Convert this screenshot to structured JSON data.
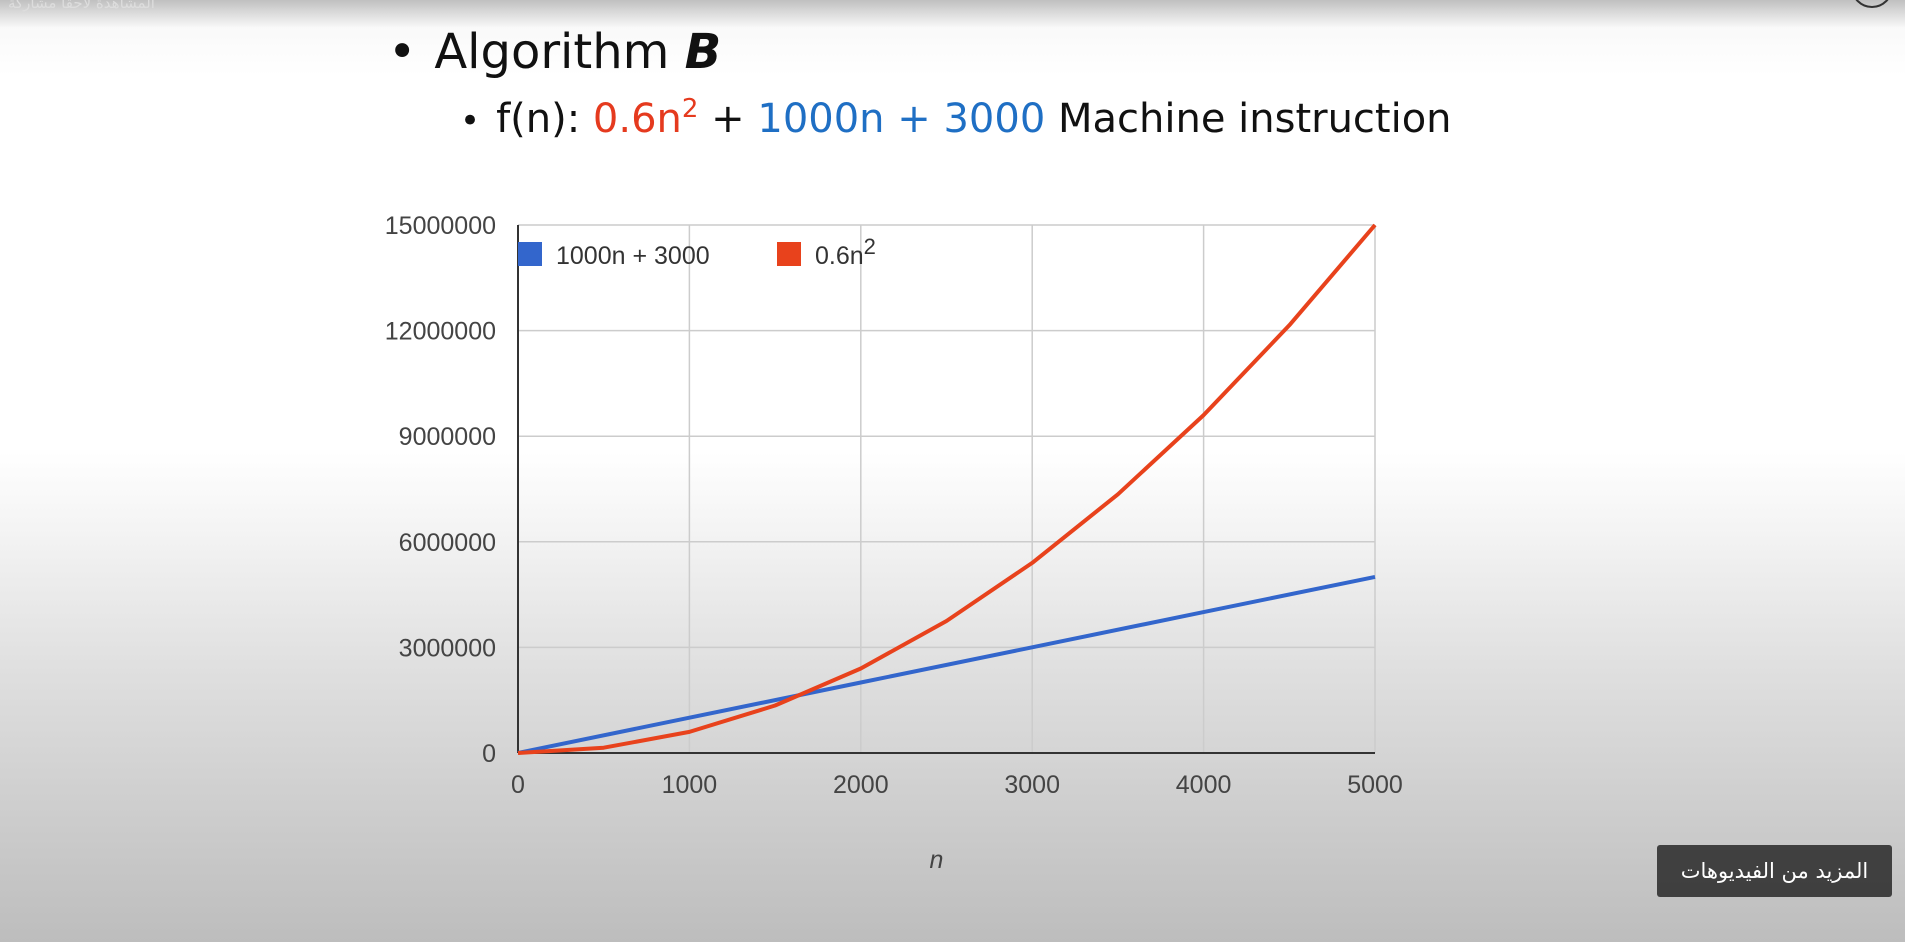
{
  "top_overlay": {
    "text": "المشاهدة لاحقًا    مشاركة"
  },
  "slide": {
    "title_prefix": "Algorithm ",
    "title_var": "B",
    "formula": {
      "fn": "f(n): ",
      "term_red": "0.6n",
      "term_red_sup": "2",
      "plus": " + ",
      "term_blue": "1000n + 3000",
      "rest": " Machine instruction"
    }
  },
  "colors": {
    "red": "#e8421c",
    "blue": "#3366cc",
    "formula_red": "#e53a1e",
    "formula_blue": "#1f6fc4"
  },
  "chart_data": {
    "type": "line",
    "xlabel": "n",
    "ylabel": "",
    "xlim": [
      0,
      5000
    ],
    "ylim": [
      0,
      15000000
    ],
    "x_ticks": [
      0,
      1000,
      2000,
      3000,
      4000,
      5000
    ],
    "y_ticks": [
      0,
      3000000,
      6000000,
      9000000,
      12000000,
      15000000
    ],
    "grid": true,
    "legend_placement": "top-left",
    "series": [
      {
        "name": "1000n + 3000",
        "color": "#3366cc",
        "x": [
          0,
          1000,
          2000,
          3000,
          4000,
          5000
        ],
        "y": [
          3000,
          1003000,
          2003000,
          3003000,
          4003000,
          5003000
        ]
      },
      {
        "name": "0.6n",
        "name_sup": "2",
        "color": "#e8421c",
        "x": [
          0,
          500,
          1000,
          1500,
          2000,
          2500,
          3000,
          3500,
          4000,
          4500,
          5000
        ],
        "y": [
          0,
          150000,
          600000,
          1350000,
          2400000,
          3750000,
          5400000,
          7350000,
          9600000,
          12150000,
          15000000
        ]
      }
    ]
  },
  "more_videos": {
    "label": "المزيد من الفيديوهات"
  }
}
